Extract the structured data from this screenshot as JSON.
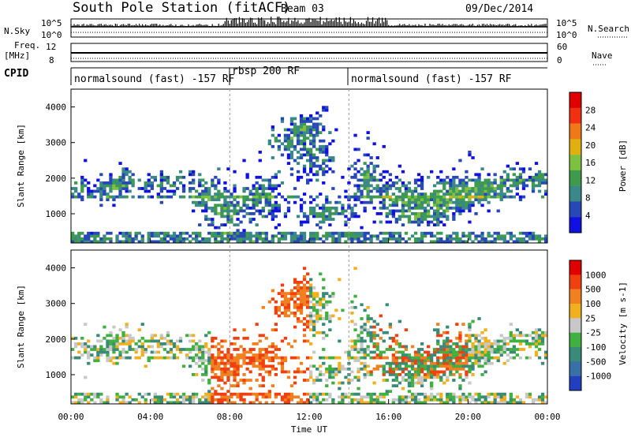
{
  "header": {
    "station": "South Pole Station (fitACF)",
    "beam": "Beam 03",
    "date": "09/Dec/2014"
  },
  "top_panels": {
    "nsky_label": "N.Sky",
    "nsky_ticks": [
      "10^5",
      "10^0"
    ],
    "nsearch_label": "N.Search",
    "nsearch_ticks": [
      "10^5",
      "10^0"
    ],
    "freq_label_1": "Freq.",
    "freq_label_2": "[MHz]",
    "freq_ticks": [
      "12",
      "8"
    ],
    "nave_label": "Nave",
    "nave_ticks": [
      "60",
      "0"
    ],
    "cpid_label": "CPID"
  },
  "cpid_segments": [
    {
      "start": "00:00",
      "label": "normalsound (fast) -157 RF"
    },
    {
      "start": "08:00",
      "label": "rbsp 200 RF"
    },
    {
      "start": "14:00",
      "label": "normalsound (fast) -157 RF"
    }
  ],
  "chart_data": [
    {
      "type": "heatmap",
      "ylabel": "Slant Range [km]",
      "ylim": [
        180,
        4500
      ],
      "yticks": [
        "1000",
        "2000",
        "3000",
        "4000"
      ],
      "xlim": [
        "00:00",
        "24:00"
      ],
      "xticks": [
        "00:00",
        "04:00",
        "08:00",
        "12:00",
        "16:00",
        "20:00",
        "00:00"
      ],
      "colorbar": {
        "label": "Power [dB]",
        "ticks": [
          "28",
          "24",
          "20",
          "16",
          "12",
          "8",
          "4"
        ],
        "range": [
          0,
          30
        ],
        "colors": [
          "#1010e0",
          "#2848b8",
          "#3a8888",
          "#3e9a4c",
          "#7ec040",
          "#e0b010",
          "#f07818",
          "#f03010",
          "#e00000"
        ]
      }
    },
    {
      "type": "heatmap",
      "ylabel": "Slant Range [km]",
      "ylim": [
        180,
        4500
      ],
      "yticks": [
        "1000",
        "2000",
        "3000",
        "4000"
      ],
      "xlim": [
        "00:00",
        "24:00"
      ],
      "xticks": [
        "00:00",
        "04:00",
        "08:00",
        "12:00",
        "16:00",
        "20:00",
        "00:00"
      ],
      "xlabel": "Time UT",
      "colorbar": {
        "label": "Velocity [m s-1]",
        "ticks": [
          "1000",
          "500",
          "100",
          "25",
          "-25",
          "-100",
          "-500",
          "-1000"
        ],
        "colors": [
          "#2040c0",
          "#3a70a8",
          "#3a8a7a",
          "#40b040",
          "#c8c8c8",
          "#f0b020",
          "#f08020",
          "#f04010",
          "#e00000"
        ]
      }
    }
  ]
}
